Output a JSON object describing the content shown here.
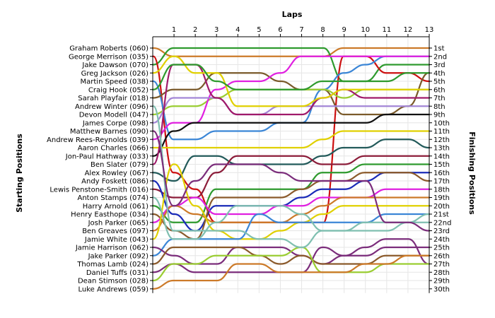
{
  "chart_data": {
    "type": "line",
    "title": "",
    "xlabel": "Laps",
    "ylabel_left": "Starting Positions",
    "ylabel_right": "Finishing Positions",
    "x_ticks": [
      "1",
      "2",
      "3",
      "4",
      "5",
      "6",
      "7",
      "8",
      "9",
      "10",
      "11",
      "12",
      "13"
    ],
    "x_range": [
      0,
      13
    ],
    "grid": true,
    "drivers": [
      "Graham Roberts (060)",
      "George Merrison (035)",
      "Jake Dawson (070)",
      "Greg Jackson (026)",
      "Martin Speed (038)",
      "Craig Hook (052)",
      "Sarah Playfair (018)",
      "Andrew Winter (096)",
      "Devon Modell (047)",
      "James Corpe (098)",
      "Matthew Barnes (090)",
      "Andrew Rees-Reynolds (039)",
      "Aaron Charles (066)",
      "Jon-Paul Hathway (033)",
      "Ben Slater (079)",
      "Alex Rowley (067)",
      "Andy Foskett (086)",
      "Lewis Penstone-Smith (016)",
      "Anton Stamps (074)",
      "Harry Arnold (061)",
      "Henry Easthope (034)",
      "Josh Parker (065)",
      "Ben Greaves (097)",
      "Jamie White (043)",
      "Jamie Harrison (062)",
      "Jake Parker (092)",
      "Thomas Lamb (024)",
      "Daniel Tuffs (031)",
      "Dean Stimson (028)",
      "Luke Andrews (059)"
    ],
    "finishing_positions": [
      "1st",
      "2nd",
      "3rd",
      "4th",
      "5th",
      "6th",
      "7th",
      "8th",
      "9th",
      "10th",
      "11th",
      "12th",
      "13th",
      "14th",
      "15th",
      "16th",
      "17th",
      "18th",
      "19th",
      "20th",
      "21st",
      "22nd",
      "23rd",
      "24th",
      "25th",
      "26th",
      "27th",
      "28th",
      "29th",
      "30th"
    ],
    "series": [
      {
        "start": 1,
        "positions": [
          2,
          2,
          2,
          2,
          2,
          2,
          2,
          2,
          1,
          1,
          1,
          1,
          1
        ],
        "color": "#cc7a29"
      },
      {
        "start": 3,
        "positions": [
          1,
          1,
          1,
          1,
          1,
          1,
          1,
          1,
          5,
          5,
          3,
          3,
          3
        ],
        "color": "#2e9a2e"
      },
      {
        "start": 2,
        "positions": [
          16,
          18,
          22,
          22,
          22,
          22,
          22,
          22,
          2,
          2,
          4,
          4,
          5
        ],
        "color": "#cc1111"
      },
      {
        "start": 5,
        "positions": [
          12,
          12,
          11,
          11,
          11,
          10,
          10,
          6,
          4,
          3,
          2,
          2,
          2
        ],
        "color": "#3b86d6"
      },
      {
        "start": 7,
        "positions": [
          6,
          6,
          4,
          4,
          4,
          5,
          6,
          6,
          9,
          9,
          9,
          8,
          4
        ],
        "color": "#7a5a2a"
      },
      {
        "start": 9,
        "positions": [
          8,
          8,
          7,
          6,
          6,
          6,
          6,
          6,
          7,
          6,
          6,
          6,
          6
        ],
        "color": "#9acd32"
      },
      {
        "start": 12,
        "positions": [
          10,
          10,
          6,
          5,
          5,
          4,
          2,
          2,
          2,
          2,
          2,
          2,
          2
        ],
        "color": "#e020e0"
      },
      {
        "start": 10,
        "positions": [
          7,
          7,
          7,
          9,
          9,
          8,
          8,
          8,
          8,
          8,
          8,
          8,
          8
        ],
        "color": "#a386d6"
      },
      {
        "start": 14,
        "positions": [
          11,
          10,
          10,
          10,
          10,
          10,
          10,
          10,
          10,
          10,
          9,
          9,
          9
        ],
        "color": "#111111"
      },
      {
        "start": 13,
        "positions": [
          13,
          13,
          13,
          13,
          13,
          13,
          13,
          12,
          11,
          11,
          11,
          11,
          11
        ],
        "color": "#e0d000"
      },
      {
        "start": 15,
        "positions": [
          3,
          3,
          7,
          9,
          9,
          9,
          9,
          7,
          6,
          7,
          7,
          7,
          7
        ],
        "color": "#a01a6a"
      },
      {
        "start": 16,
        "positions": [
          17,
          14,
          14,
          15,
          15,
          15,
          15,
          14,
          13,
          13,
          12,
          12,
          13
        ],
        "color": "#225a5a"
      },
      {
        "start": 18,
        "positions": [
          19,
          19,
          16,
          14,
          14,
          14,
          14,
          15,
          15,
          14,
          14,
          14,
          14
        ],
        "color": "#8c1d3a"
      },
      {
        "start": 20,
        "positions": [
          22,
          22,
          18,
          18,
          18,
          18,
          18,
          16,
          16,
          15,
          15,
          15,
          15
        ],
        "color": "#2e9a2e"
      },
      {
        "start": 17,
        "positions": [
          21,
          23,
          20,
          20,
          20,
          20,
          19,
          18,
          18,
          17,
          16,
          16,
          16
        ],
        "color": "#1a2bb8"
      },
      {
        "start": 21,
        "positions": [
          23,
          24,
          19,
          19,
          19,
          19,
          18,
          17,
          17,
          16,
          16,
          16,
          17
        ],
        "color": "#8b5a2b"
      },
      {
        "start": 22,
        "positions": [
          20,
          19,
          21,
          21,
          21,
          20,
          20,
          19,
          19,
          19,
          18,
          18,
          18
        ],
        "color": "#e020e0"
      },
      {
        "start": 23,
        "positions": [
          20,
          21,
          22,
          22,
          22,
          22,
          21,
          20,
          19,
          19,
          19,
          19,
          19
        ],
        "color": "#cc7a29"
      },
      {
        "start": 24,
        "positions": [
          15,
          20,
          23,
          24,
          24,
          23,
          22,
          21,
          20,
          20,
          20,
          20,
          20
        ],
        "color": "#e0d000"
      },
      {
        "start": 26,
        "positions": [
          24,
          24,
          24,
          24,
          21,
          22,
          22,
          22,
          22,
          22,
          21,
          21,
          21
        ],
        "color": "#3b86d6"
      },
      {
        "start": 25,
        "positions": [
          26,
          27,
          27,
          25,
          25,
          25,
          26,
          27,
          26,
          26,
          25,
          25,
          25
        ],
        "color": "#7b2d7b"
      },
      {
        "start": 27,
        "positions": [
          25,
          25,
          25,
          25,
          26,
          27,
          26,
          27,
          27,
          27,
          26,
          26,
          26
        ],
        "color": "#8b5a2b"
      },
      {
        "start": 28,
        "positions": [
          27,
          28,
          28,
          28,
          28,
          28,
          28,
          25,
          26,
          25,
          24,
          24,
          27
        ],
        "color": "#7b2d7b"
      },
      {
        "start": 29,
        "positions": [
          27,
          27,
          26,
          26,
          26,
          26,
          25,
          28,
          28,
          28,
          27,
          27,
          27
        ],
        "color": "#9acd32"
      },
      {
        "start": 30,
        "positions": [
          29,
          29,
          29,
          27,
          27,
          28,
          28,
          28,
          28,
          27,
          27,
          26,
          26
        ],
        "color": "#cc7a29"
      },
      {
        "start": 19,
        "positions": [
          24,
          24,
          22,
          20,
          20,
          20,
          21,
          23,
          23,
          23,
          23,
          22,
          22
        ],
        "color": "#7fbfb0"
      },
      {
        "start": 8,
        "positions": [
          23,
          23,
          23,
          23,
          24,
          24,
          25,
          23,
          23,
          22,
          22,
          22,
          21
        ],
        "color": "#7fbfb0"
      },
      {
        "start": 11,
        "positions": [
          20,
          17,
          15,
          15,
          15,
          16,
          17,
          17,
          17,
          17,
          22,
          22,
          23
        ],
        "color": "#7b2d7b"
      },
      {
        "start": 4,
        "positions": [
          2,
          4,
          4,
          8,
          8,
          8,
          8,
          7,
          6,
          6,
          6,
          6,
          6
        ],
        "color": "#e0d000"
      },
      {
        "start": 6,
        "positions": [
          3,
          3,
          5,
          6,
          6,
          6,
          6,
          5,
          5,
          5,
          5,
          4,
          4
        ],
        "color": "#2e9a2e"
      }
    ]
  }
}
